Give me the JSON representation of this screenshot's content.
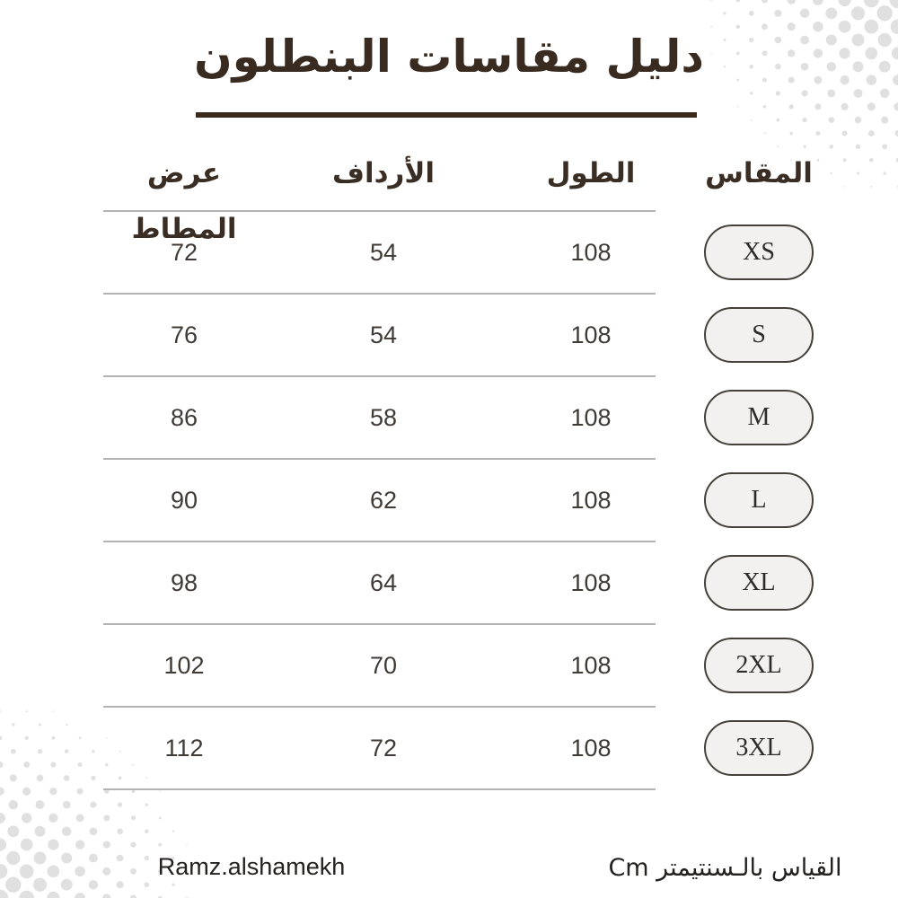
{
  "title": "دليل مقاسات البنطلون",
  "table": {
    "headers": {
      "size": "المقاس",
      "length": "الطول",
      "hips": "الأرداف",
      "elastic_width": "عرض المطاط"
    },
    "rows": [
      {
        "size": "XS",
        "length": "108",
        "hips": "54",
        "elastic_width": "72"
      },
      {
        "size": "S",
        "length": "108",
        "hips": "54",
        "elastic_width": "76"
      },
      {
        "size": "M",
        "length": "108",
        "hips": "58",
        "elastic_width": "86"
      },
      {
        "size": "L",
        "length": "108",
        "hips": "62",
        "elastic_width": "90"
      },
      {
        "size": "XL",
        "length": "108",
        "hips": "64",
        "elastic_width": "98"
      },
      {
        "size": "2XL",
        "length": "108",
        "hips": "70",
        "elastic_width": "102"
      },
      {
        "size": "3XL",
        "length": "108",
        "hips": "72",
        "elastic_width": "112"
      }
    ]
  },
  "footer": {
    "brand": "Ramz.alshamekh",
    "unit_note": "القياس بالـسنتيمتر Cm"
  },
  "colors": {
    "accent_brown": "#3a2b21",
    "underline_brown": "#3a2a1e",
    "value_text": "#3f3a35",
    "badge_fill": "#f2f1ef",
    "badge_border": "#45403a",
    "divider_gray": "#b5b3b1",
    "halftone_dot_gray": "#e0e0e0",
    "background": "#ffffff"
  },
  "chart_data": {
    "type": "table",
    "title": "دليل مقاسات البنطلون",
    "columns": [
      "المقاس",
      "الطول",
      "الأرداف",
      "عرض المطاط"
    ],
    "rows": [
      [
        "XS",
        108,
        54,
        72
      ],
      [
        "S",
        108,
        54,
        76
      ],
      [
        "M",
        108,
        58,
        86
      ],
      [
        "L",
        108,
        62,
        90
      ],
      [
        "XL",
        108,
        64,
        98
      ],
      [
        "2XL",
        108,
        70,
        102
      ],
      [
        "3XL",
        108,
        72,
        112
      ]
    ],
    "unit": "Cm",
    "layout_hints": {
      "direction": "rtl",
      "size_column_style": "pill-badge",
      "all_lengths_equal": 108
    }
  }
}
